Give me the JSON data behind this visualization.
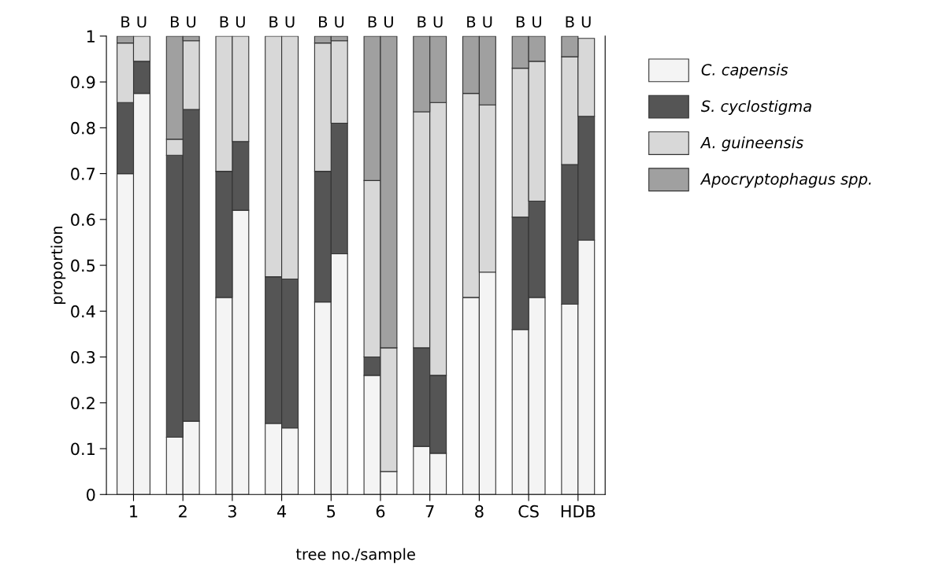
{
  "chart_data": {
    "type": "bar",
    "stacked": true,
    "xlabel": "tree no./sample",
    "ylabel": "proportion",
    "categories": [
      "B",
      "U",
      "B",
      "U",
      "B",
      "U",
      "B",
      "U",
      "B",
      "U",
      "B",
      "U",
      "B",
      "U",
      "B",
      "U",
      "B",
      "U",
      "B",
      "U"
    ],
    "series": [
      {
        "name": "C. capensis",
        "color": "#f4f4f4",
        "values": [
          0.7,
          0.875,
          0.125,
          0.16,
          0.43,
          0.62,
          0.155,
          0.145,
          0.42,
          0.525,
          0.26,
          0.05,
          0.105,
          0.09,
          0.43,
          0.485,
          0.36,
          0.43,
          0.415,
          0.555
        ]
      },
      {
        "name": "S. cyclostigma",
        "color": "#555555",
        "values": [
          0.155,
          0.07,
          0.615,
          0.68,
          0.275,
          0.15,
          0.32,
          0.325,
          0.285,
          0.285,
          0.04,
          null,
          0.215,
          0.17,
          null,
          null,
          0.245,
          0.21,
          0.305,
          0.27
        ]
      },
      {
        "name": "A. guineensis",
        "color": "#d8d8d8",
        "values": [
          0.13,
          0.055,
          0.035,
          0.15,
          0.295,
          0.23,
          0.525,
          0.53,
          0.28,
          0.18,
          0.385,
          0.27,
          0.515,
          0.595,
          0.445,
          0.365,
          0.325,
          0.305,
          0.235,
          0.17
        ]
      },
      {
        "name": "Apocryptophagus spp.",
        "color": "#a0a0a0",
        "values": [
          0.015,
          null,
          0.225,
          0.01,
          null,
          null,
          null,
          null,
          0.015,
          0.01,
          0.315,
          0.68,
          0.165,
          0.145,
          0.125,
          0.15,
          0.07,
          0.055,
          0.045,
          null
        ]
      }
    ],
    "annotations": [
      "1",
      "2",
      "3",
      "4",
      "5",
      "6",
      "7",
      "8",
      "CS",
      "HDB"
    ],
    "ylim": [
      0,
      1
    ],
    "yticks": [
      0,
      0.1,
      0.2,
      0.3,
      0.4,
      0.5,
      0.6,
      0.7,
      0.8,
      0.9,
      1
    ],
    "grid": false,
    "legend": "right"
  }
}
